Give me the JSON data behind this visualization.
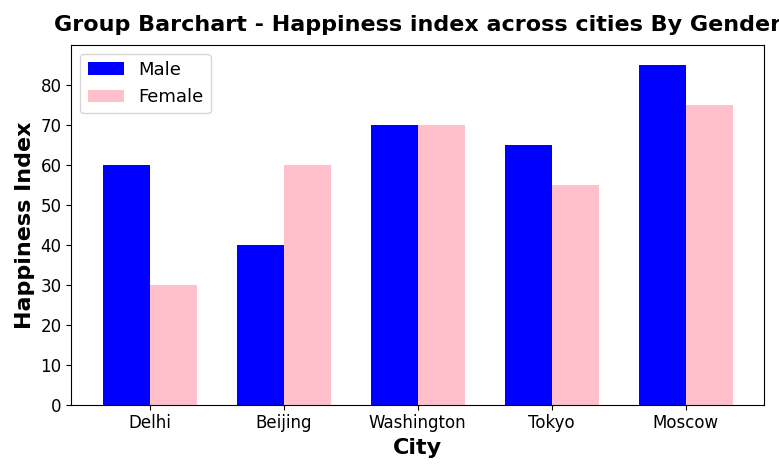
{
  "title": "Group Barchart - Happiness index across cities By Gender",
  "xlabel": "City",
  "ylabel": "Happiness Index",
  "categories": [
    "Delhi",
    "Beijing",
    "Washington",
    "Tokyo",
    "Moscow"
  ],
  "male_values": [
    60,
    40,
    70,
    65,
    85
  ],
  "female_values": [
    30,
    60,
    70,
    55,
    75
  ],
  "male_color": "blue",
  "female_color": "pink",
  "male_label": "Male",
  "female_label": "Female",
  "ylim": [
    0,
    90
  ],
  "yticks": [
    0,
    10,
    20,
    30,
    40,
    50,
    60,
    70,
    80
  ],
  "bar_width": 0.35,
  "title_fontsize": 16,
  "axis_label_fontsize": 16,
  "tick_fontsize": 12,
  "legend_fontsize": 13,
  "background_color": "#ffffff",
  "axes_background_color": "#ffffff"
}
